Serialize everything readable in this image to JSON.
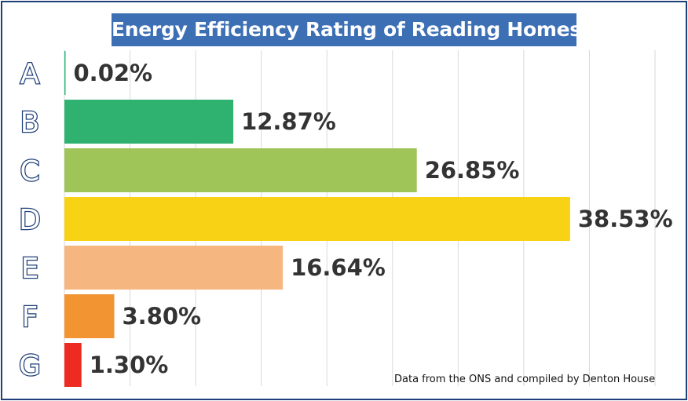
{
  "chart_data": {
    "type": "bar",
    "orientation": "horizontal",
    "title": "Energy Efficiency Rating of Reading Homes",
    "categories": [
      "A",
      "B",
      "C",
      "D",
      "E",
      "F",
      "G"
    ],
    "values": [
      0.02,
      12.87,
      26.85,
      38.53,
      16.64,
      3.8,
      1.3
    ],
    "value_labels": [
      "0.02%",
      "12.87%",
      "26.85%",
      "38.53%",
      "16.64%",
      "3.80%",
      "1.30%"
    ],
    "colors": [
      "#2fb57a",
      "#2fb270",
      "#9fc457",
      "#f8d215",
      "#f5b77f",
      "#f29432",
      "#ee2b20"
    ],
    "xlim": [
      0,
      45
    ],
    "grid": true,
    "legend": "none",
    "annotation": "Data from the ONS and compiled by Denton House"
  }
}
